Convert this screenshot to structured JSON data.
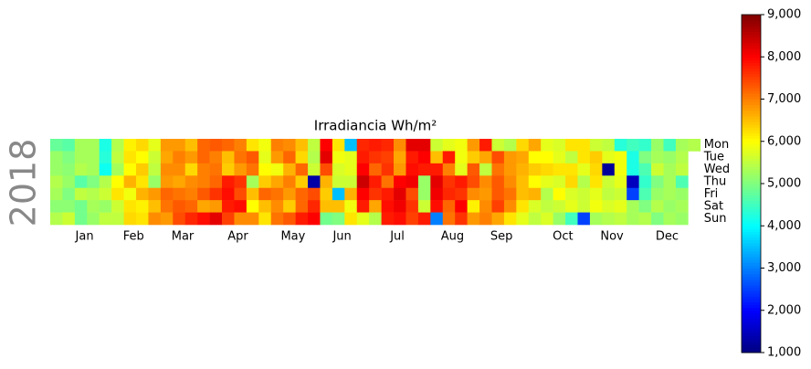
{
  "chart_data": {
    "type": "calendar_heatmap",
    "title": "Irradiancia Wh/m²",
    "year": 2018,
    "colormap": "jet",
    "days": [
      "Mon",
      "Tue",
      "Wed",
      "Thu",
      "Fri",
      "Sat",
      "Sun"
    ],
    "months": [
      "Jan",
      "Feb",
      "Mar",
      "Apr",
      "May",
      "Jun",
      "Jul",
      "Aug",
      "Sep",
      "Oct",
      "Nov",
      "Dec"
    ],
    "clim": [
      1000,
      9000
    ],
    "cticks": [
      {
        "value": 1000,
        "label": "1,000"
      },
      {
        "value": 2000,
        "label": "2,000"
      },
      {
        "value": 3000,
        "label": "3,000"
      },
      {
        "value": 4000,
        "label": "4,000"
      },
      {
        "value": 5000,
        "label": "5,000"
      },
      {
        "value": 6000,
        "label": "6,000"
      },
      {
        "value": 7000,
        "label": "7,000"
      },
      {
        "value": 8000,
        "label": "8,000"
      },
      {
        "value": 9000,
        "label": "9,000"
      }
    ],
    "values": [
      [
        4800,
        4700,
        5300,
        5300,
        4200,
        5400,
        6100,
        6300,
        5800,
        6800,
        6800,
        6500,
        7200,
        7300,
        7200,
        7000,
        6200,
        5900,
        7000,
        6900,
        6500,
        5500,
        8000,
        6200,
        3500,
        7700,
        7800,
        7700,
        6900,
        8200,
        8200,
        5600,
        5800,
        5900,
        6800,
        7800,
        5600,
        5400,
        6300,
        6700,
        5800,
        5700,
        6200,
        6200,
        5600,
        5500,
        4300,
        4500,
        4400,
        5200,
        4500,
        5300,
        5400
      ],
      [
        5200,
        5000,
        5300,
        5300,
        4300,
        5500,
        6200,
        6000,
        5600,
        6700,
        7000,
        6800,
        7200,
        7000,
        6500,
        7100,
        7300,
        5800,
        6800,
        7200,
        6300,
        5400,
        8200,
        5900,
        5800,
        7800,
        7600,
        7500,
        6700,
        7800,
        8000,
        6500,
        7800,
        5900,
        6400,
        6700,
        7400,
        6800,
        6700,
        6000,
        6000,
        5800,
        5500,
        6200,
        6400,
        5800,
        5900,
        4200,
        5000,
        5300,
        5200,
        5400,
        null
      ],
      [
        5200,
        5100,
        5400,
        5300,
        4100,
        5300,
        6000,
        6400,
        5500,
        6900,
        6900,
        6300,
        7000,
        7100,
        6400,
        6800,
        7100,
        6000,
        5900,
        6600,
        7200,
        5600,
        7400,
        5700,
        5800,
        8000,
        7200,
        7600,
        6800,
        7900,
        7800,
        7800,
        7000,
        5800,
        7300,
        5500,
        7100,
        6800,
        6600,
        6400,
        6300,
        6200,
        6200,
        5800,
        6300,
        1200,
        5900,
        4200,
        4600,
        5600,
        5300,
        5500,
        null
      ],
      [
        5400,
        5200,
        4700,
        5000,
        5400,
        6000,
        6600,
        6200,
        5200,
        6800,
        6700,
        6900,
        7000,
        7200,
        7800,
        7600,
        5300,
        6400,
        6700,
        7000,
        6400,
        1300,
        6600,
        5600,
        5600,
        8400,
        7800,
        7100,
        8000,
        8100,
        5200,
        8200,
        7600,
        7800,
        7400,
        6900,
        7300,
        6900,
        6500,
        6000,
        5800,
        5700,
        6300,
        5400,
        6200,
        5600,
        5800,
        1500,
        4400,
        5000,
        5300,
        4600,
        null
      ],
      [
        5300,
        5000,
        5500,
        5400,
        5600,
        6200,
        5900,
        6600,
        6800,
        7200,
        7100,
        7000,
        7300,
        7600,
        7900,
        7400,
        6500,
        7200,
        7100,
        6800,
        7200,
        7400,
        6400,
        3500,
        6600,
        8000,
        7600,
        7800,
        8200,
        7400,
        5200,
        8100,
        7700,
        7600,
        6900,
        6800,
        7300,
        7100,
        6500,
        6600,
        5400,
        6000,
        5700,
        5600,
        5800,
        5500,
        5600,
        2500,
        4600,
        5200,
        5300,
        5200,
        null
      ],
      [
        5100,
        5100,
        4900,
        5300,
        5200,
        5600,
        6200,
        6100,
        6500,
        7100,
        7300,
        7200,
        6700,
        6800,
        7800,
        7900,
        6000,
        6500,
        6900,
        6400,
        7200,
        7700,
        6500,
        6500,
        5900,
        7800,
        6700,
        7900,
        8100,
        7600,
        5600,
        7900,
        7200,
        8000,
        6100,
        6900,
        7500,
        6900,
        6200,
        5700,
        5500,
        5600,
        5800,
        5600,
        5900,
        5700,
        5800,
        5300,
        5000,
        5400,
        5200,
        5300,
        null
      ],
      [
        5400,
        5600,
        4900,
        5200,
        5500,
        5500,
        6300,
        6200,
        6900,
        6800,
        7400,
        7700,
        7900,
        8200,
        7500,
        6900,
        6900,
        6200,
        7100,
        7300,
        7800,
        8000,
        4900,
        5000,
        6200,
        5800,
        5400,
        7800,
        7900,
        7500,
        7800,
        3000,
        7100,
        7600,
        6800,
        7000,
        6700,
        6200,
        5800,
        5500,
        5700,
        5200,
        4500,
        2500,
        5300,
        5400,
        5500,
        5300,
        5400,
        5000,
        5300,
        5200,
        null
      ]
    ]
  }
}
